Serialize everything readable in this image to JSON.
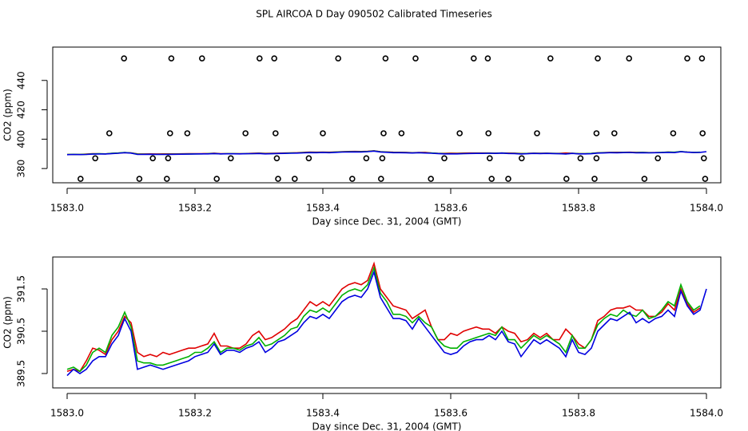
{
  "chart_data": [
    {
      "type": "scatter",
      "title": "SPL AIRCOA D  Day 090502  Calibrated Timeseries",
      "xlabel": "Day since Dec. 31, 2004 (GMT)",
      "ylabel": "CO2 (ppm)",
      "color": "#000000",
      "x": [
        1583.089,
        1583.163,
        1583.211,
        1583.301,
        1583.324,
        1583.424,
        1583.498,
        1583.545,
        1583.636,
        1583.658,
        1583.756,
        1583.83,
        1583.879,
        1583.97,
        1583.993,
        1583.066,
        1583.161,
        1583.188,
        1583.279,
        1583.326,
        1583.4,
        1583.495,
        1583.523,
        1583.614,
        1583.659,
        1583.735,
        1583.828,
        1583.856,
        1583.948,
        1583.994,
        1583.044,
        1583.134,
        1583.158,
        1583.256,
        1583.328,
        1583.378,
        1583.468,
        1583.493,
        1583.59,
        1583.661,
        1583.711,
        1583.803,
        1583.828,
        1583.924,
        1583.996,
        1583.021,
        1583.113,
        1583.156,
        1583.234,
        1583.33,
        1583.356,
        1583.446,
        1583.491,
        1583.569,
        1583.664,
        1583.69,
        1583.781,
        1583.825,
        1583.903,
        1583.998
      ],
      "values": [
        455,
        455,
        455,
        455,
        455,
        455,
        455,
        455,
        455,
        455,
        455,
        455,
        455,
        455,
        455,
        404,
        404,
        404,
        404,
        404,
        404,
        404,
        404,
        404,
        404,
        404,
        404,
        404,
        404,
        404,
        387,
        387,
        387,
        387,
        387,
        387,
        387,
        387,
        387,
        387,
        387,
        387,
        387,
        387,
        387,
        373,
        373,
        373,
        373,
        373,
        373,
        373,
        373,
        373,
        373,
        373,
        373,
        373,
        373,
        373
      ],
      "xlim": [
        1582.9775,
        1584.0225
      ],
      "ylim": [
        370.3,
        462.7
      ],
      "xticks": [
        {
          "value": 1583,
          "label": "1583.0"
        },
        1583.2,
        1583.4,
        1583.6,
        1583.8,
        {
          "value": 1584,
          "label": "1584.0"
        }
      ],
      "yticks": [
        380,
        400,
        420,
        440
      ]
    },
    {
      "type": "line",
      "xlabel": "Day since Dec. 31, 2004 (GMT)",
      "ylabel": "CO2 (ppm)",
      "x": [
        1583,
        1583.01,
        1583.02,
        1583.03,
        1583.04,
        1583.05,
        1583.06,
        1583.07,
        1583.08,
        1583.09,
        1583.1,
        1583.11,
        1583.12,
        1583.13,
        1583.14,
        1583.15,
        1583.16,
        1583.17,
        1583.18,
        1583.19,
        1583.2,
        1583.21,
        1583.22,
        1583.23,
        1583.24,
        1583.25,
        1583.26,
        1583.27,
        1583.28,
        1583.29,
        1583.3,
        1583.31,
        1583.32,
        1583.33,
        1583.34,
        1583.35,
        1583.36,
        1583.37,
        1583.38,
        1583.39,
        1583.4,
        1583.41,
        1583.42,
        1583.43,
        1583.44,
        1583.45,
        1583.46,
        1583.47,
        1583.48,
        1583.49,
        1583.5,
        1583.51,
        1583.52,
        1583.53,
        1583.54,
        1583.55,
        1583.56,
        1583.57,
        1583.58,
        1583.59,
        1583.6,
        1583.61,
        1583.62,
        1583.63,
        1583.64,
        1583.65,
        1583.66,
        1583.67,
        1583.68,
        1583.69,
        1583.7,
        1583.71,
        1583.72,
        1583.73,
        1583.74,
        1583.75,
        1583.76,
        1583.77,
        1583.78,
        1583.79,
        1583.8,
        1583.81,
        1583.82,
        1583.83,
        1583.84,
        1583.85,
        1583.86,
        1583.87,
        1583.88,
        1583.89,
        1583.9,
        1583.91,
        1583.92,
        1583.93,
        1583.94,
        1583.95,
        1583.96,
        1583.97,
        1583.98,
        1583.99,
        1584
      ],
      "series": [
        {
          "color": "#e00000",
          "values": [
            389.55,
            389.6,
            389.55,
            389.8,
            390.1,
            390.05,
            389.95,
            390.3,
            390.5,
            390.85,
            390.7,
            390.0,
            389.9,
            389.95,
            389.9,
            390.0,
            389.95,
            390.0,
            390.05,
            390.1,
            390.1,
            390.15,
            390.2,
            390.45,
            390.15,
            390.15,
            390.1,
            390.1,
            390.2,
            390.4,
            390.5,
            390.3,
            390.35,
            390.45,
            390.55,
            390.7,
            390.8,
            391.0,
            391.2,
            391.1,
            391.2,
            391.1,
            391.3,
            391.5,
            391.6,
            391.65,
            391.6,
            391.7,
            392.1,
            391.5,
            391.3,
            391.1,
            391.05,
            391.0,
            390.8,
            390.9,
            391.0,
            390.6,
            390.3,
            390.3,
            390.45,
            390.4,
            390.5,
            390.55,
            390.6,
            390.55,
            390.55,
            390.45,
            390.6,
            390.5,
            390.45,
            390.25,
            390.3,
            390.45,
            390.35,
            390.45,
            390.3,
            390.3,
            390.55,
            390.4,
            390.2,
            390.1,
            390.3,
            390.75,
            390.85,
            391.0,
            391.05,
            391.05,
            391.1,
            391.0,
            391.0,
            390.85,
            390.85,
            390.95,
            391.15,
            391.0,
            391.5,
            391.15,
            390.95,
            391.05,
            null
          ]
        },
        {
          "color": "#00b000",
          "values": [
            389.6,
            389.65,
            389.55,
            389.7,
            390.0,
            390.1,
            390.0,
            390.4,
            390.6,
            390.95,
            390.6,
            389.8,
            389.75,
            389.75,
            389.7,
            389.7,
            389.75,
            389.8,
            389.85,
            389.9,
            390.0,
            390.0,
            390.1,
            390.25,
            390.0,
            390.1,
            390.1,
            390.05,
            390.15,
            390.2,
            390.35,
            390.15,
            390.2,
            390.3,
            390.4,
            390.55,
            390.6,
            390.85,
            391.0,
            390.95,
            391.05,
            390.95,
            391.15,
            391.35,
            391.45,
            391.5,
            391.45,
            391.6,
            392.0,
            391.4,
            391.2,
            390.9,
            390.9,
            390.85,
            390.7,
            390.85,
            390.7,
            390.6,
            390.3,
            390.15,
            390.1,
            390.1,
            390.25,
            390.3,
            390.35,
            390.4,
            390.45,
            390.4,
            390.6,
            390.3,
            390.3,
            390.1,
            390.25,
            390.4,
            390.3,
            390.4,
            390.3,
            390.2,
            390.0,
            390.4,
            390.1,
            390.1,
            390.3,
            390.65,
            390.8,
            390.9,
            390.85,
            391.0,
            390.9,
            390.85,
            391.0,
            390.8,
            390.85,
            391.0,
            391.2,
            391.1,
            391.6,
            391.2,
            391.0,
            391.1,
            null
          ]
        },
        {
          "color": "#0000e0",
          "values": [
            389.45,
            389.6,
            389.5,
            389.6,
            389.8,
            389.9,
            389.9,
            390.2,
            390.4,
            390.8,
            390.5,
            389.6,
            389.65,
            389.7,
            389.65,
            389.6,
            389.65,
            389.7,
            389.75,
            389.8,
            389.9,
            389.95,
            390.0,
            390.2,
            389.95,
            390.05,
            390.05,
            390.0,
            390.1,
            390.15,
            390.25,
            390.0,
            390.1,
            390.25,
            390.3,
            390.4,
            390.5,
            390.7,
            390.85,
            390.8,
            390.9,
            390.8,
            391.0,
            391.2,
            391.3,
            391.35,
            391.3,
            391.5,
            391.9,
            391.3,
            391.05,
            390.8,
            390.8,
            390.75,
            390.55,
            390.8,
            390.6,
            390.4,
            390.2,
            390.0,
            389.95,
            390.0,
            390.15,
            390.25,
            390.3,
            390.3,
            390.4,
            390.3,
            390.5,
            390.25,
            390.2,
            389.9,
            390.1,
            390.3,
            390.2,
            390.3,
            390.2,
            390.1,
            389.9,
            390.3,
            390.0,
            389.95,
            390.1,
            390.5,
            390.65,
            390.8,
            390.75,
            390.85,
            390.95,
            390.7,
            390.8,
            390.7,
            390.8,
            390.85,
            391.0,
            390.85,
            391.45,
            391.1,
            390.9,
            391.0,
            391.5
          ]
        }
      ],
      "xlim": [
        1582.9775,
        1584.0225
      ],
      "ylim": [
        389.16,
        392.255
      ],
      "xticks": [
        {
          "value": 1583,
          "label": "1583.0"
        },
        1583.2,
        1583.4,
        1583.6,
        1583.8,
        {
          "value": 1584,
          "label": "1584.0"
        }
      ],
      "yticks": [
        389.5,
        390.5,
        391.5
      ]
    }
  ]
}
